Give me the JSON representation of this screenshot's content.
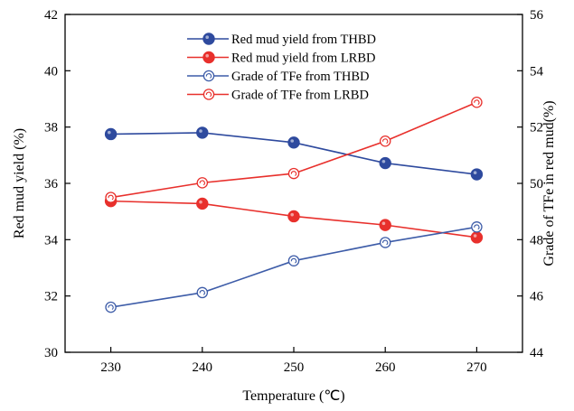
{
  "chart_data": {
    "type": "line",
    "x": [
      230,
      240,
      250,
      260,
      270
    ],
    "xlabel": "Temperature (℃)",
    "xlim": [
      225,
      275
    ],
    "xticks": [
      230,
      240,
      250,
      260,
      270
    ],
    "ylabel_left": "Red mud yield (%)",
    "ylim_left": [
      30,
      42
    ],
    "yticks_left": [
      30,
      32,
      34,
      36,
      38,
      40,
      42
    ],
    "ylabel_right": "Grade of  TFe in red mud(%)",
    "ylim_right": [
      44,
      56
    ],
    "yticks_right": [
      44,
      46,
      48,
      50,
      52,
      54,
      56
    ],
    "legend_position": "top-center",
    "grid": false,
    "series": [
      {
        "name": "Red mud yield from THBD",
        "axis": "left",
        "color": "#2e4a9e",
        "marker": "filled",
        "values": [
          37.75,
          37.8,
          37.45,
          36.72,
          36.32
        ]
      },
      {
        "name": "Red mud yield from LRBD",
        "axis": "left",
        "color": "#e8302c",
        "marker": "filled",
        "values": [
          35.37,
          35.28,
          34.83,
          34.52,
          34.08
        ]
      },
      {
        "name": "Grade of  TFe from THBD",
        "axis": "right",
        "color": "#3d5ca8",
        "marker": "open",
        "values": [
          45.6,
          46.12,
          47.25,
          47.9,
          48.45
        ]
      },
      {
        "name": "Grade of  TFe from LRBD",
        "axis": "right",
        "color": "#e8302c",
        "marker": "open",
        "values": [
          49.5,
          50.02,
          50.35,
          51.5,
          52.88
        ]
      }
    ]
  }
}
